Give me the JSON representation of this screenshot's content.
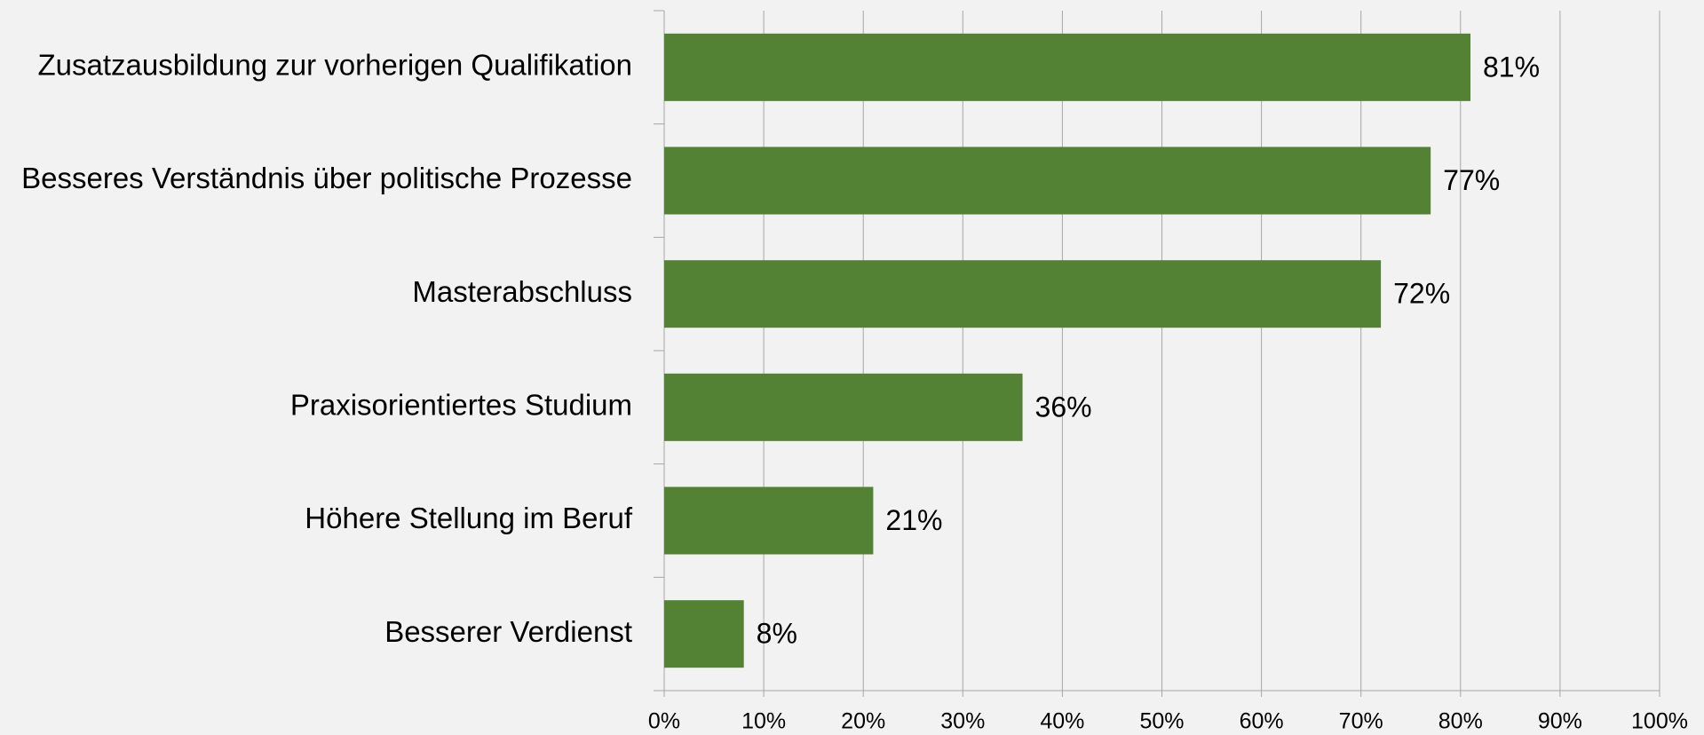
{
  "chart_data": {
    "type": "bar",
    "orientation": "horizontal",
    "categories": [
      "Zusatzausbildung zur vorherigen Qualifikation",
      "Besseres Verständnis über politische Prozesse",
      "Masterabschluss",
      "Praxisorientiertes Studium",
      "Höhere Stellung im Beruf",
      "Besserer Verdienst"
    ],
    "values": [
      81,
      77,
      72,
      36,
      21,
      8
    ],
    "value_labels": [
      "81%",
      "77%",
      "72%",
      "36%",
      "21%",
      "8%"
    ],
    "color": "#548235",
    "xlim": [
      0,
      100
    ],
    "xticks": [
      {
        "value": 0,
        "label": "0%"
      },
      {
        "value": 10,
        "label": "10%"
      },
      {
        "value": 20,
        "label": "20%"
      },
      {
        "value": 30,
        "label": "30%"
      },
      {
        "value": 40,
        "label": "40%"
      },
      {
        "value": 50,
        "label": "50%"
      },
      {
        "value": 60,
        "label": "60%"
      },
      {
        "value": 70,
        "label": "70%"
      },
      {
        "value": 80,
        "label": "80%"
      },
      {
        "value": 90,
        "label": "90%"
      },
      {
        "value": 100,
        "label": "100%"
      }
    ],
    "grid": true
  }
}
